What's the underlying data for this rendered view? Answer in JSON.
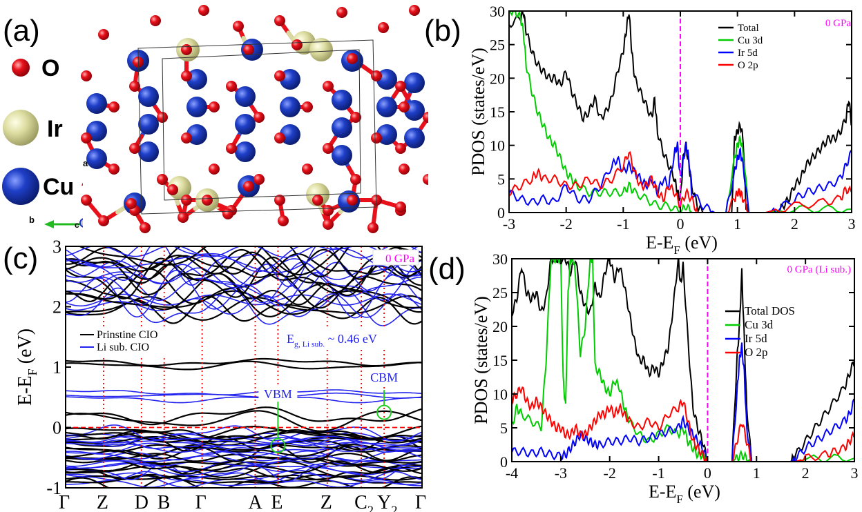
{
  "panels": {
    "a": {
      "label": "(a)",
      "legend": [
        {
          "element": "O",
          "color": "#e8111b"
        },
        {
          "element": "Ir",
          "color": "#dcdca0"
        },
        {
          "element": "Cu",
          "color": "#1f3fc8"
        }
      ],
      "axes": {
        "a": "a",
        "b": "b",
        "c": "c"
      }
    },
    "b": {
      "label": "(b)"
    },
    "c": {
      "label": "(c)"
    },
    "d": {
      "label": "(d)"
    }
  },
  "chart_data": [
    {
      "id": "b",
      "type": "line",
      "title": "",
      "annotation": "0 GPa",
      "annotation_color": "#ff00ff",
      "xlabel": "E-E",
      "xlabel_sub": "F",
      "xlabel_unit": " (eV)",
      "ylabel": "PDOS (states/eV)",
      "xlim": [
        -3,
        3
      ],
      "ylim": [
        0,
        30
      ],
      "xticks": [
        -3,
        -2,
        -1,
        0,
        1,
        2,
        3
      ],
      "yticks": [
        0,
        5,
        10,
        15,
        20,
        25,
        30
      ],
      "fermi_line": 0,
      "legend_position": "top-right",
      "series": [
        {
          "name": "Total",
          "color": "#000000",
          "x": [
            -3,
            -2.8,
            -2.75,
            -2.7,
            -2.6,
            -2.5,
            -2.4,
            -2.3,
            -2.2,
            -2.1,
            -2.0,
            -1.9,
            -1.8,
            -1.7,
            -1.6,
            -1.5,
            -1.4,
            -1.3,
            -1.2,
            -1.1,
            -1.0,
            -0.95,
            -0.9,
            -0.85,
            -0.8,
            -0.7,
            -0.6,
            -0.5,
            -0.45,
            -0.4,
            -0.3,
            -0.2,
            -0.1,
            -0.05,
            0,
            0.05,
            0.1,
            0.15,
            0.2,
            0.3,
            0.4,
            0.5,
            0.6,
            0.7,
            0.8,
            0.9,
            0.95,
            1.0,
            1.05,
            1.1,
            1.15,
            1.2,
            1.3,
            1.4,
            1.5,
            1.6,
            1.7,
            1.8,
            1.9,
            2.0,
            2.1,
            2.2,
            2.3,
            2.4,
            2.5,
            2.6,
            2.7,
            2.8,
            2.9,
            2.95,
            3.0
          ],
          "y": [
            28,
            29,
            30,
            27,
            24,
            22,
            21,
            20,
            20,
            19,
            21,
            18,
            16,
            14,
            15,
            17,
            14,
            15,
            17,
            21,
            24,
            27,
            30,
            24,
            20,
            18,
            16,
            14,
            17,
            12,
            9,
            7,
            5,
            3,
            2,
            8,
            10,
            7,
            4,
            1,
            0,
            0,
            0,
            0,
            0,
            0,
            11,
            12,
            13,
            11,
            1,
            0,
            0,
            0,
            0,
            0,
            0,
            1,
            2,
            4,
            5,
            7,
            8,
            9,
            10,
            11,
            11,
            12,
            14,
            17,
            13
          ]
        },
        {
          "name": "Cu 3d",
          "color": "#00cc00",
          "x": [
            -3,
            -2.9,
            -2.8,
            -2.75,
            -2.7,
            -2.6,
            -2.5,
            -2.4,
            -2.3,
            -2.2,
            -2.1,
            -2.0,
            -1.9,
            -1.8,
            -1.6,
            -1.4,
            -1.2,
            -1.0,
            -0.9,
            -0.8,
            -0.6,
            -0.4,
            -0.2,
            0,
            0.1,
            0.2,
            0.4,
            0.6,
            0.8,
            0.95,
            1.0,
            1.05,
            1.1,
            1.2,
            1.5,
            2.0,
            2.5,
            3.0
          ],
          "y": [
            30,
            30,
            29,
            27,
            22,
            18,
            15,
            13,
            11,
            10,
            8,
            6,
            5,
            4,
            3,
            3,
            3,
            3,
            4,
            3,
            2,
            1,
            1,
            0,
            1,
            0,
            0,
            0,
            0,
            8,
            10,
            11,
            9,
            0,
            0,
            0.5,
            0.5,
            0.5
          ]
        },
        {
          "name": "Ir 5d",
          "color": "#0000ff",
          "x": [
            -3,
            -2.8,
            -2.6,
            -2.4,
            -2.2,
            -2.0,
            -1.8,
            -1.6,
            -1.4,
            -1.2,
            -1.1,
            -1.0,
            -0.9,
            -0.8,
            -0.7,
            -0.6,
            -0.5,
            -0.4,
            -0.3,
            -0.2,
            -0.1,
            -0.05,
            0,
            0.05,
            0.1,
            0.15,
            0.2,
            0.4,
            0.6,
            0.8,
            0.95,
            1.0,
            1.05,
            1.1,
            1.2,
            1.5,
            1.7,
            2.0,
            2.2,
            2.4,
            2.6,
            2.8,
            2.9,
            3.0
          ],
          "y": [
            3,
            2,
            1.5,
            2,
            1.5,
            4,
            2,
            2,
            4,
            7,
            8,
            6,
            7,
            6,
            5,
            4,
            5,
            3,
            5,
            4,
            9,
            10,
            5,
            8,
            10,
            8,
            3,
            1,
            0,
            0,
            6,
            8,
            9,
            7,
            0,
            0,
            0.5,
            2,
            3,
            3.5,
            4,
            5,
            7,
            9
          ]
        },
        {
          "name": "O 2p",
          "color": "#ff0000",
          "x": [
            -3,
            -2.8,
            -2.6,
            -2.5,
            -2.4,
            -2.2,
            -2.0,
            -1.8,
            -1.6,
            -1.4,
            -1.2,
            -1.0,
            -0.9,
            -0.8,
            -0.7,
            -0.6,
            -0.5,
            -0.4,
            -0.3,
            -0.2,
            -0.1,
            0,
            0.1,
            0.2,
            0.3,
            0.5,
            0.8,
            0.95,
            1.0,
            1.05,
            1.1,
            1.2,
            1.5,
            2.0,
            2.5,
            2.8,
            2.9,
            3.0
          ],
          "y": [
            3,
            4,
            5,
            6,
            5,
            5,
            4,
            4,
            5,
            4,
            5,
            7,
            9,
            6,
            4,
            4,
            5,
            3,
            2,
            4,
            3,
            1,
            3,
            2,
            0,
            0,
            0,
            2,
            3,
            3,
            2,
            0,
            0,
            1,
            1.5,
            2,
            3.5,
            3
          ]
        }
      ]
    },
    {
      "id": "c",
      "type": "line",
      "title": "",
      "annotation": "0 GPa",
      "annotation_color": "#ff00ff",
      "ylabel": "E-E",
      "ylabel_sub": "F",
      "ylabel_unit": " (eV)",
      "ylim": [
        -1,
        3
      ],
      "yticks": [
        -1,
        0,
        1,
        2,
        3
      ],
      "kpoints": [
        "Γ",
        "Z",
        "D",
        "B",
        "Γ",
        "A",
        "E",
        "Z",
        "C",
        "Y",
        "Γ"
      ],
      "kpoint_subs": [
        "",
        "",
        "",
        "",
        "",
        "",
        "",
        "",
        "2",
        "2",
        ""
      ],
      "kpoint_positions": [
        0,
        1,
        2,
        2.6,
        3.6,
        5,
        5.6,
        6.9,
        7.8,
        8.4,
        9.4
      ],
      "legend_position": "middle-left",
      "legend": [
        {
          "name": "Prinstine CIO",
          "color": "#000000"
        },
        {
          "name": "Li sub. CIO",
          "color": "#2222ee"
        }
      ],
      "annotations": [
        {
          "text": "E",
          "sub": "g, Li sub.",
          "suffix": " ~ 0.46 eV",
          "color": "#2222ee"
        },
        {
          "text": "VBM",
          "color": "#2222ee",
          "k": 5.6,
          "e": -0.3
        },
        {
          "text": "CBM",
          "color": "#2222ee",
          "k": 8.4,
          "e": 0.25
        }
      ],
      "gap_eV": 0.46
    },
    {
      "id": "d",
      "type": "line",
      "title": "",
      "annotation": "0 GPa (Li sub.)",
      "annotation_color": "#ff00ff",
      "xlabel": "E-E",
      "xlabel_sub": "F",
      "xlabel_unit": " (eV)",
      "ylabel": "PDOS (states/eV)",
      "xlim": [
        -4,
        3
      ],
      "ylim": [
        0,
        30
      ],
      "xticks": [
        -4,
        -3,
        -2,
        -1,
        0,
        1,
        2,
        3
      ],
      "yticks": [
        0,
        5,
        10,
        15,
        20,
        25,
        30
      ],
      "fermi_line": 0,
      "legend_position": "middle-right",
      "series": [
        {
          "name": "Total DOS",
          "color": "#000000",
          "x": [
            -4,
            -3.9,
            -3.8,
            -3.7,
            -3.6,
            -3.5,
            -3.4,
            -3.3,
            -3.2,
            -3.1,
            -3.0,
            -2.9,
            -2.8,
            -2.7,
            -2.6,
            -2.5,
            -2.4,
            -2.3,
            -2.2,
            -2.1,
            -2.0,
            -1.9,
            -1.8,
            -1.7,
            -1.6,
            -1.5,
            -1.4,
            -1.3,
            -1.2,
            -1.1,
            -1.0,
            -0.9,
            -0.8,
            -0.7,
            -0.6,
            -0.55,
            -0.5,
            -0.4,
            -0.3,
            -0.2,
            -0.1,
            0,
            0.5,
            0.6,
            0.65,
            0.7,
            0.75,
            0.8,
            0.9,
            1.0,
            1.5,
            1.7,
            1.8,
            2.0,
            2.2,
            2.4,
            2.6,
            2.8,
            2.9,
            3.0
          ],
          "y": [
            22,
            24,
            29,
            25,
            24,
            25,
            22,
            24,
            30,
            30,
            30,
            30,
            28,
            30,
            25,
            23,
            22,
            26,
            24,
            28,
            30,
            27,
            29,
            26,
            22,
            18,
            15,
            15,
            13,
            14,
            13,
            15,
            17,
            23,
            30,
            26,
            29,
            18,
            8,
            5,
            3,
            0,
            0,
            15,
            20,
            28,
            18,
            8,
            0,
            0,
            0,
            0,
            1,
            3,
            5,
            7,
            9,
            11,
            13,
            15
          ]
        },
        {
          "name": "Cu 3d",
          "color": "#00cc00",
          "x": [
            -4,
            -3.9,
            -3.8,
            -3.6,
            -3.4,
            -3.3,
            -3.2,
            -3.1,
            -3.0,
            -2.95,
            -2.9,
            -2.85,
            -2.8,
            -2.75,
            -2.7,
            -2.6,
            -2.5,
            -2.4,
            -2.35,
            -2.3,
            -2.2,
            -2.1,
            -2.0,
            -1.9,
            -1.8,
            -1.7,
            -1.6,
            -1.4,
            -1.2,
            -1.0,
            -0.8,
            -0.6,
            -0.5,
            -0.4,
            -0.3,
            -0.2,
            -0.1,
            0,
            0.5,
            0.6,
            0.7,
            0.8,
            0.9,
            1.8,
            2.0,
            2.5,
            3.0
          ],
          "y": [
            5,
            8,
            7,
            6,
            5,
            15,
            30,
            30,
            30,
            12,
            8,
            25,
            30,
            30,
            28,
            16,
            20,
            30,
            30,
            14,
            13,
            11,
            10,
            12,
            11,
            8,
            6,
            4,
            3,
            4,
            5,
            4,
            5,
            3,
            2,
            1,
            1,
            0,
            0,
            0.5,
            1,
            0.5,
            0,
            0,
            0.3,
            0.5,
            0.5
          ]
        },
        {
          "name": "Ir 5d",
          "color": "#0000ff",
          "x": [
            -4,
            -3.8,
            -3.6,
            -3.4,
            -3.2,
            -3.0,
            -2.9,
            -2.8,
            -2.7,
            -2.6,
            -2.5,
            -2.4,
            -2.3,
            -2.2,
            -2.0,
            -1.8,
            -1.6,
            -1.4,
            -1.2,
            -1.0,
            -0.8,
            -0.6,
            -0.5,
            -0.4,
            -0.3,
            -0.2,
            -0.1,
            0,
            0.5,
            0.6,
            0.65,
            0.7,
            0.75,
            0.8,
            0.9,
            1.7,
            1.8,
            2.0,
            2.2,
            2.4,
            2.6,
            2.8,
            2.9,
            3.0
          ],
          "y": [
            1.5,
            1.5,
            1.2,
            1.5,
            1,
            0.8,
            1,
            2,
            3,
            4,
            3.5,
            3,
            2.5,
            2.5,
            3,
            3,
            3.5,
            3,
            3.5,
            4,
            4.5,
            5,
            6,
            5,
            4,
            3,
            2,
            0,
            0,
            10,
            15,
            17,
            13,
            5,
            0,
            0,
            0.5,
            2,
            3,
            4,
            5,
            6,
            7,
            9
          ]
        },
        {
          "name": "O 2p",
          "color": "#ff0000",
          "x": [
            -4,
            -3.9,
            -3.8,
            -3.7,
            -3.6,
            -3.5,
            -3.4,
            -3.3,
            -3.2,
            -3.1,
            -3.0,
            -2.9,
            -2.8,
            -2.7,
            -2.6,
            -2.5,
            -2.4,
            -2.3,
            -2.2,
            -2.1,
            -2.0,
            -1.9,
            -1.8,
            -1.7,
            -1.6,
            -1.4,
            -1.2,
            -1.0,
            -0.8,
            -0.6,
            -0.5,
            -0.4,
            -0.3,
            -0.2,
            -0.1,
            0,
            0.5,
            0.6,
            0.7,
            0.8,
            0.9,
            1.8,
            2.0,
            2.4,
            2.6,
            2.8,
            2.9,
            3.0
          ],
          "y": [
            9,
            10,
            11,
            9,
            8,
            9,
            8,
            7,
            6,
            5,
            5,
            4,
            4,
            5,
            4,
            4,
            5,
            6,
            7,
            7,
            8,
            7,
            8,
            7,
            6,
            5,
            6,
            5,
            7,
            8,
            9,
            6,
            3,
            2,
            1,
            0,
            0,
            3,
            6,
            3,
            0,
            0,
            0.5,
            1,
            1.5,
            2,
            3,
            4
          ]
        }
      ]
    }
  ]
}
